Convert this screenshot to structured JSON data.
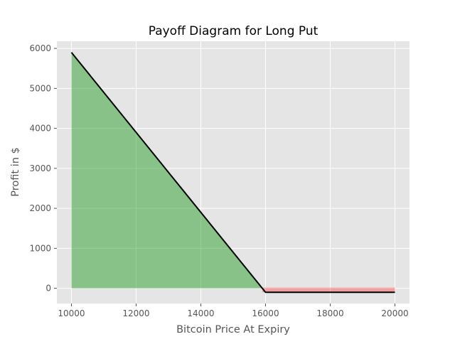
{
  "chart_data": {
    "type": "line",
    "title": "Payoff Diagram for Long Put",
    "xlabel": "Bitcoin Price At Expiry",
    "ylabel": "Profit in $",
    "xlim": [
      9550,
      20450
    ],
    "ylim": [
      -380,
      6180
    ],
    "xticks": [
      10000,
      12000,
      14000,
      16000,
      18000,
      20000
    ],
    "yticks": [
      0,
      1000,
      2000,
      3000,
      4000,
      5000,
      6000
    ],
    "grid": true,
    "x": [
      10000,
      16000,
      20000
    ],
    "series": [
      {
        "values": [
          5900,
          -100,
          -100
        ]
      }
    ],
    "profit_fill_color": "#2ca02c",
    "loss_fill_color": "#ff0000",
    "line_color": "#000000",
    "plot_background": "#e5e5e5"
  }
}
